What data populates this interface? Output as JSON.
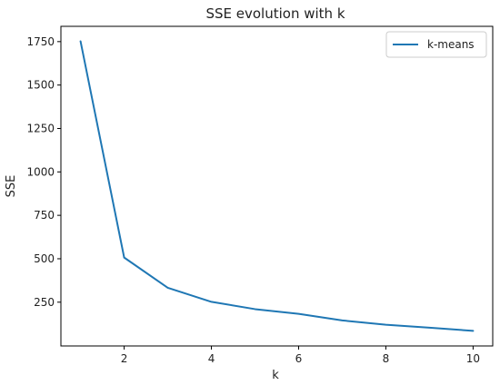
{
  "chart_data": {
    "type": "line",
    "title": "SSE evolution with k",
    "xlabel": "k",
    "ylabel": "SSE",
    "x": [
      1,
      2,
      3,
      4,
      5,
      6,
      7,
      8,
      9,
      10
    ],
    "series": [
      {
        "name": "k-means",
        "color": "#1f77b4",
        "values": [
          1752,
          507,
          333,
          252,
          210,
          183,
          145,
          120,
          103,
          85
        ]
      }
    ],
    "xticks": [
      2,
      4,
      6,
      8,
      10
    ],
    "yticks": [
      250,
      500,
      750,
      1000,
      1250,
      1500,
      1750
    ],
    "xlim": [
      0.55,
      10.45
    ],
    "ylim": [
      -2,
      1838
    ],
    "grid": false,
    "legend_position": "top-right"
  }
}
